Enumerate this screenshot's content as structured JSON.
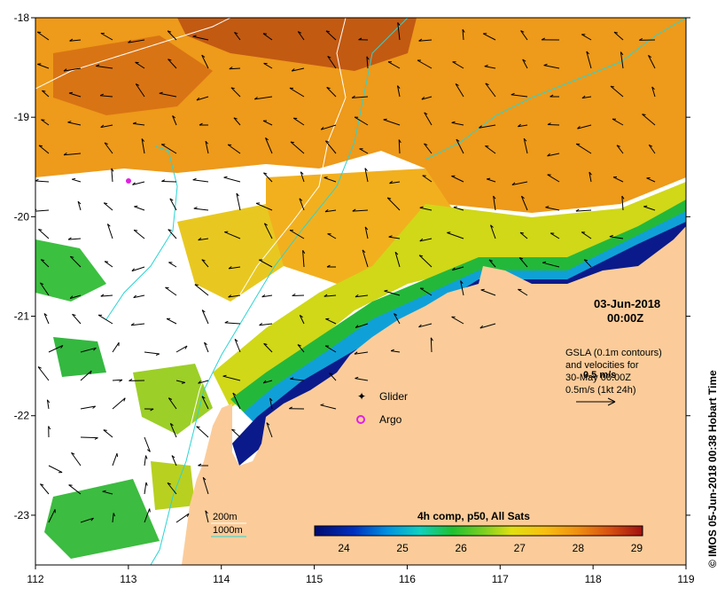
{
  "map": {
    "x_axis": {
      "ticks": [
        "112",
        "113",
        "114",
        "115",
        "116",
        "117",
        "118",
        "119"
      ]
    },
    "y_axis": {
      "ticks": [
        "-18",
        "-19",
        "-20",
        "-21",
        "-22",
        "-23"
      ]
    },
    "extent": {
      "lon_min": 112,
      "lon_max": 119,
      "lat_min": -23.5,
      "lat_max": -18
    }
  },
  "datetime": {
    "date": "03-Jun-2018",
    "time": "00:00Z"
  },
  "velocity_note": {
    "line1": "GSLA (0.1m contours)",
    "line2": "and velocities for",
    "line3": "30-May 00:00Z",
    "line4": "0.5m/s (1kt 24h)",
    "scale_label": "0.5 m/s"
  },
  "legend": {
    "glider_label": "Glider",
    "argo_label": "Argo",
    "glider_color": "#e020e0",
    "argo_color": "#e020e0"
  },
  "isobaths": {
    "label_200": "200m",
    "label_1000": "1000m",
    "color_200": "#ffffff",
    "color_1000": "#2ad4d4"
  },
  "colorbar": {
    "title": "4h comp, p50, All Sats",
    "ticks": [
      "24",
      "25",
      "26",
      "27",
      "28",
      "29"
    ],
    "range": [
      23.5,
      29.1
    ]
  },
  "credit": "© IMOS 05-Jun-2018 00:38 Hobart Time",
  "colors": {
    "land": "#fbcc9a",
    "cold": "#0a1a7a",
    "warm": "#b8400a"
  }
}
